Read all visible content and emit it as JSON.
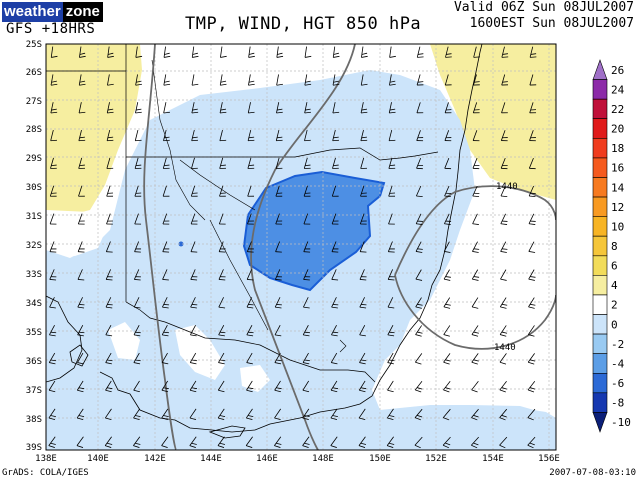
{
  "header": {
    "brand_left": "weather",
    "brand_right": "zone",
    "model_run": "GFS +18HRS",
    "title": "TMP, WIND, HGT 850 hPa",
    "valid_utc": "Valid 06Z Sun 08JUL2007",
    "valid_local": "1600EST Sun 08JUL2007"
  },
  "footer": {
    "credit": "GrADS: COLA/IGES",
    "timestamp": "2007-07-08-03:10"
  },
  "map": {
    "lat_labels": [
      "25S",
      "26S",
      "27S",
      "28S",
      "29S",
      "30S",
      "31S",
      "32S",
      "33S",
      "34S",
      "35S",
      "36S",
      "37S",
      "38S",
      "39S"
    ],
    "lon_labels": [
      "138E",
      "140E",
      "142E",
      "144E",
      "146E",
      "148E",
      "150E",
      "152E",
      "154E",
      "156E"
    ],
    "contour_labels": [
      "1440",
      "1440"
    ]
  },
  "colorbar": {
    "labels": [
      "26",
      "24",
      "22",
      "20",
      "18",
      "16",
      "14",
      "12",
      "10",
      "8",
      "6",
      "4",
      "2",
      "0",
      "-2",
      "-4",
      "-6",
      "-8",
      "-10"
    ],
    "colors": [
      "#a070c8",
      "#8c2aa8",
      "#c0103a",
      "#e01a1a",
      "#f03c1e",
      "#f55a1e",
      "#f77a20",
      "#f89a22",
      "#f7b424",
      "#f5c63a",
      "#f2dc5a",
      "#f6eea0",
      "#ffffff",
      "#cce4fa",
      "#99caf2",
      "#5c9ee6",
      "#2c6ad6",
      "#1638b0",
      "#0b1f78"
    ]
  },
  "colors": {
    "warm_fill": "#f6eea0",
    "pale_blue_fill": "#cce4fa",
    "mid_blue_fill": "#4d8fe4"
  }
}
